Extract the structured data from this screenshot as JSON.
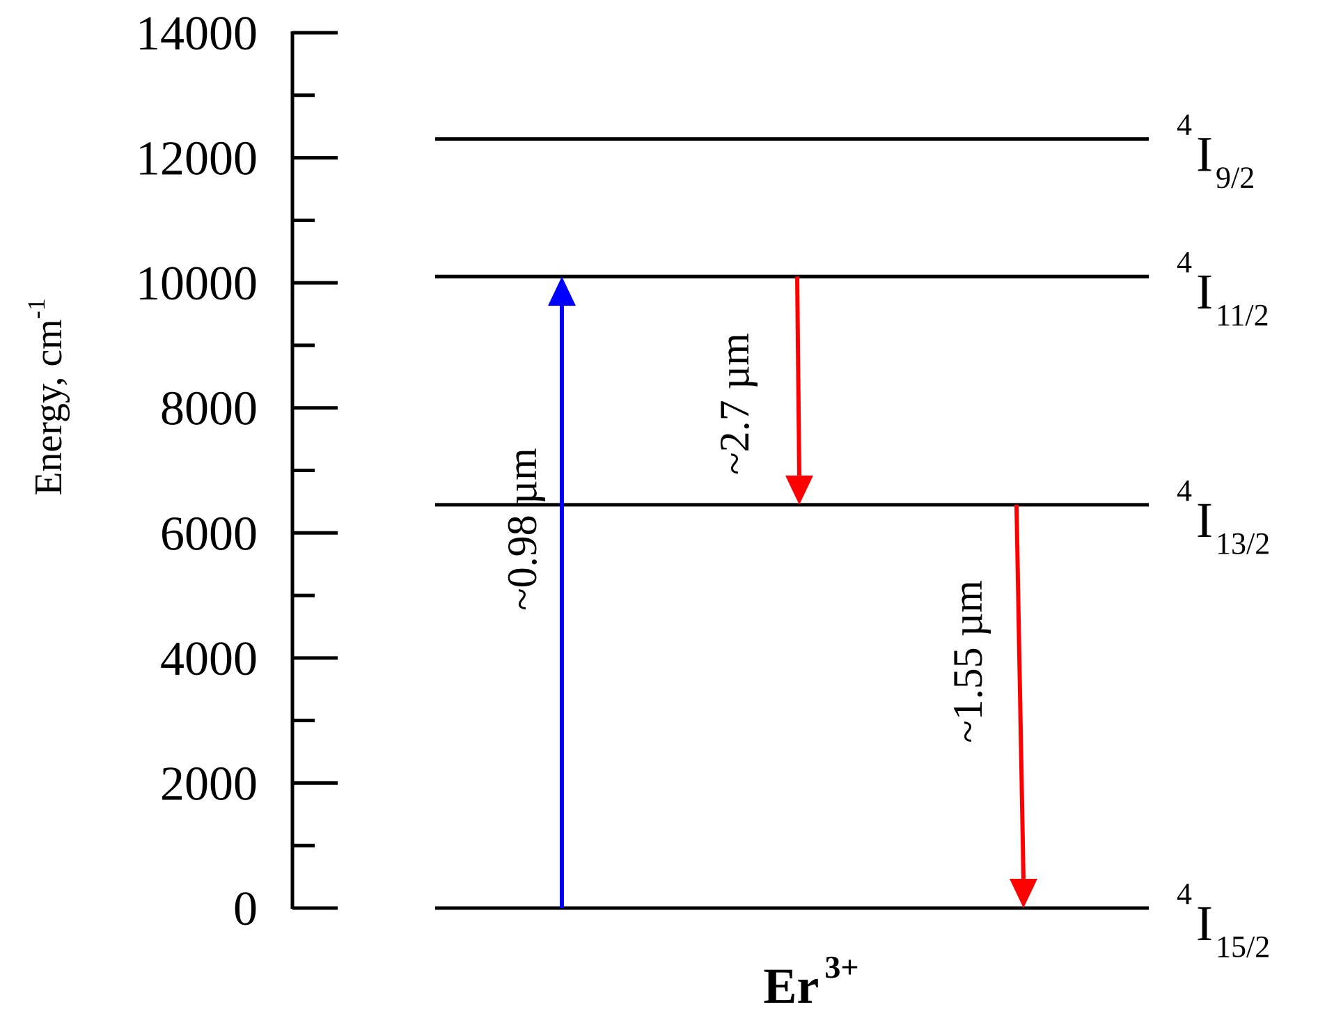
{
  "axis": {
    "title": "Energy, cm",
    "title_sup": "-1",
    "ylim": [
      0,
      14000
    ],
    "major_ticks": [
      0,
      2000,
      4000,
      6000,
      8000,
      10000,
      12000,
      14000
    ],
    "minor_ticks": [
      1000,
      3000,
      5000,
      7000,
      9000,
      11000,
      13000
    ],
    "tick_labels": [
      "0",
      "2000",
      "4000",
      "6000",
      "8000",
      "10000",
      "12000",
      "14000"
    ]
  },
  "levels": [
    {
      "sup": "4",
      "term": "I",
      "sub": "15/2",
      "energy": 0
    },
    {
      "sup": "4",
      "term": "I",
      "sub": "13/2",
      "energy": 6450
    },
    {
      "sup": "4",
      "term": "I",
      "sub": "11/2",
      "energy": 10100
    },
    {
      "sup": "4",
      "term": "I",
      "sub": "9/2",
      "energy": 12300
    }
  ],
  "transitions": [
    {
      "label": "~0.98 µm",
      "from": 0,
      "to": 10100,
      "direction": "up",
      "color": "#0000ff"
    },
    {
      "label": "~2.7 µm",
      "from": 10100,
      "to": 6450,
      "direction": "down",
      "color": "#ff0000"
    },
    {
      "label": "~1.55 µm",
      "from": 6450,
      "to": 0,
      "direction": "down",
      "color": "#ff0000"
    }
  ],
  "ion": {
    "base": "Er",
    "sup": "3+"
  },
  "colors": {
    "axis": "#000000",
    "level": "#000000",
    "pump": "#0000ff",
    "emission": "#ff0000"
  }
}
